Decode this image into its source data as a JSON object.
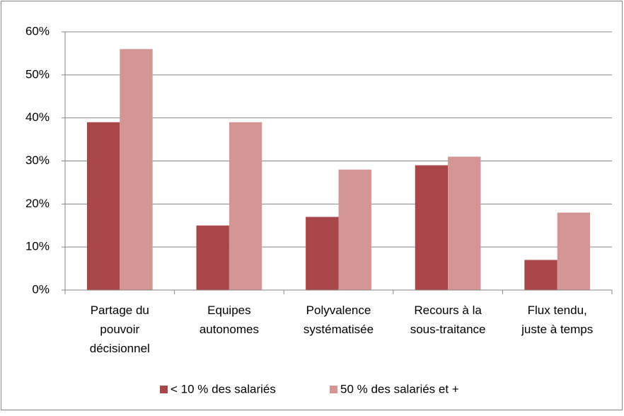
{
  "chart_data": {
    "type": "bar",
    "categories": [
      [
        "Partage du",
        "pouvoir",
        "décisionnel"
      ],
      [
        "Equipes",
        "autonomes"
      ],
      [
        "Polyvalence",
        "systématisée"
      ],
      [
        "Recours à la",
        "sous-traitance"
      ],
      [
        "Flux tendu,",
        "juste à temps"
      ]
    ],
    "series": [
      {
        "name": "< 10 % des salariés",
        "color": "#a9464a",
        "values": [
          39,
          15,
          17,
          29,
          7
        ]
      },
      {
        "name": "50 % des salariés et +",
        "color": "#d49595",
        "values": [
          56,
          39,
          28,
          31,
          18
        ]
      }
    ],
    "ylim": [
      0,
      60
    ],
    "yticks": [
      {
        "value": 0,
        "label": "0%"
      },
      {
        "value": 10,
        "label": "10%"
      },
      {
        "value": 20,
        "label": "20%"
      },
      {
        "value": 30,
        "label": "30%"
      },
      {
        "value": 40,
        "label": "40%"
      },
      {
        "value": 50,
        "label": "50%"
      },
      {
        "value": 60,
        "label": "60%"
      }
    ],
    "grid": true,
    "legend": "bottom"
  }
}
